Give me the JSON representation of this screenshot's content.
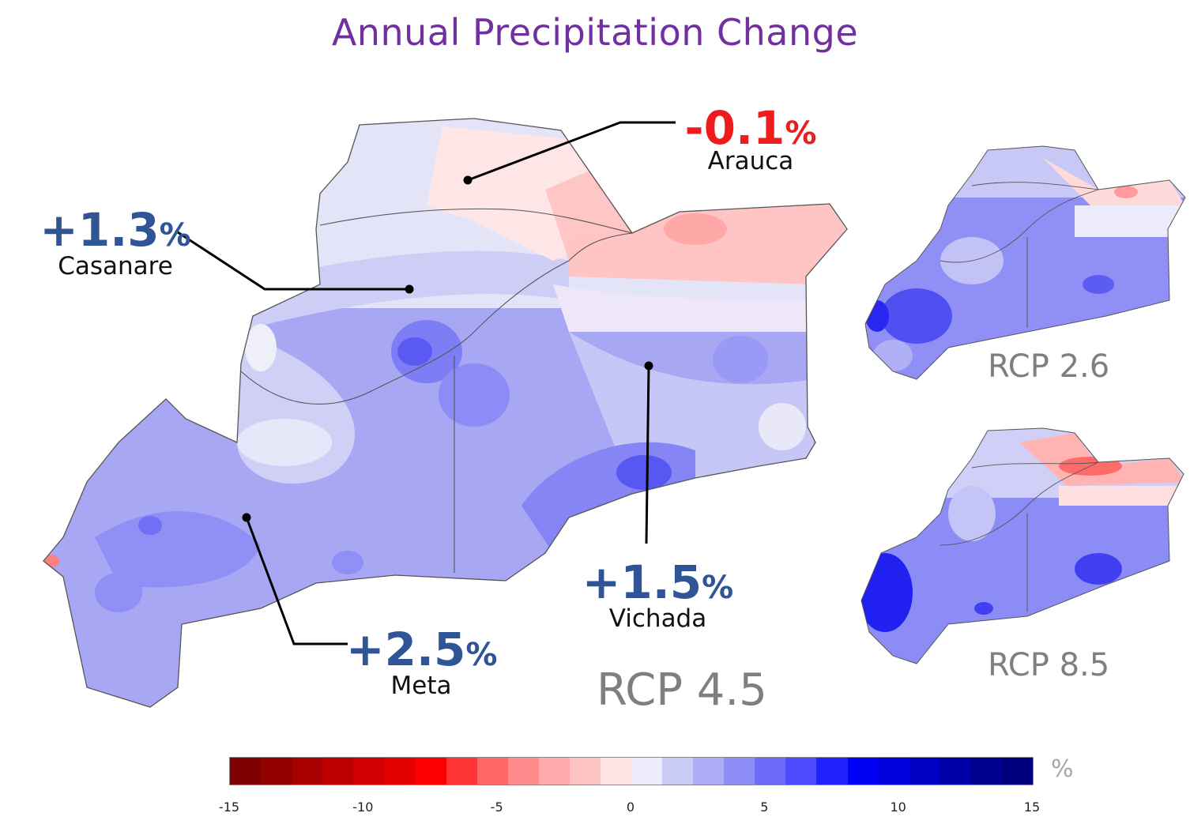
{
  "title": "Annual Precipitation Change",
  "annotations": {
    "arauca": {
      "value": "-0.1",
      "unit": "%",
      "name": "Arauca"
    },
    "casanare": {
      "value": "+1.3",
      "unit": "%",
      "name": "Casanare"
    },
    "vichada": {
      "value": "+1.5",
      "unit": "%",
      "name": "Vichada"
    },
    "meta": {
      "value": "+2.5",
      "unit": "%",
      "name": "Meta"
    }
  },
  "scenarios": {
    "main": "RCP 4.5",
    "top_right": "RCP 2.6",
    "bottom_right": "RCP 8.5"
  },
  "legend": {
    "unit": "%",
    "ticks": [
      "-15",
      "-10",
      "-5",
      "0",
      "5",
      "10",
      "15"
    ],
    "colors": [
      "#7f0000",
      "#930000",
      "#a80000",
      "#bc0000",
      "#d10000",
      "#e50000",
      "#fa0000",
      "#ff3434",
      "#ff6666",
      "#ff8c8c",
      "#ffaaaa",
      "#ffc4c4",
      "#ffe3e3",
      "#ebebfb",
      "#cacaf7",
      "#ababf7",
      "#8e8ef7",
      "#6b6bf7",
      "#4b4bfb",
      "#2222ff",
      "#0000f5",
      "#0000dc",
      "#0000c3",
      "#0000a9",
      "#000090",
      "#00007f"
    ],
    "accent_negative": "#ee1c1c",
    "accent_positive": "#2f5597",
    "title_color": "#7030a0"
  }
}
